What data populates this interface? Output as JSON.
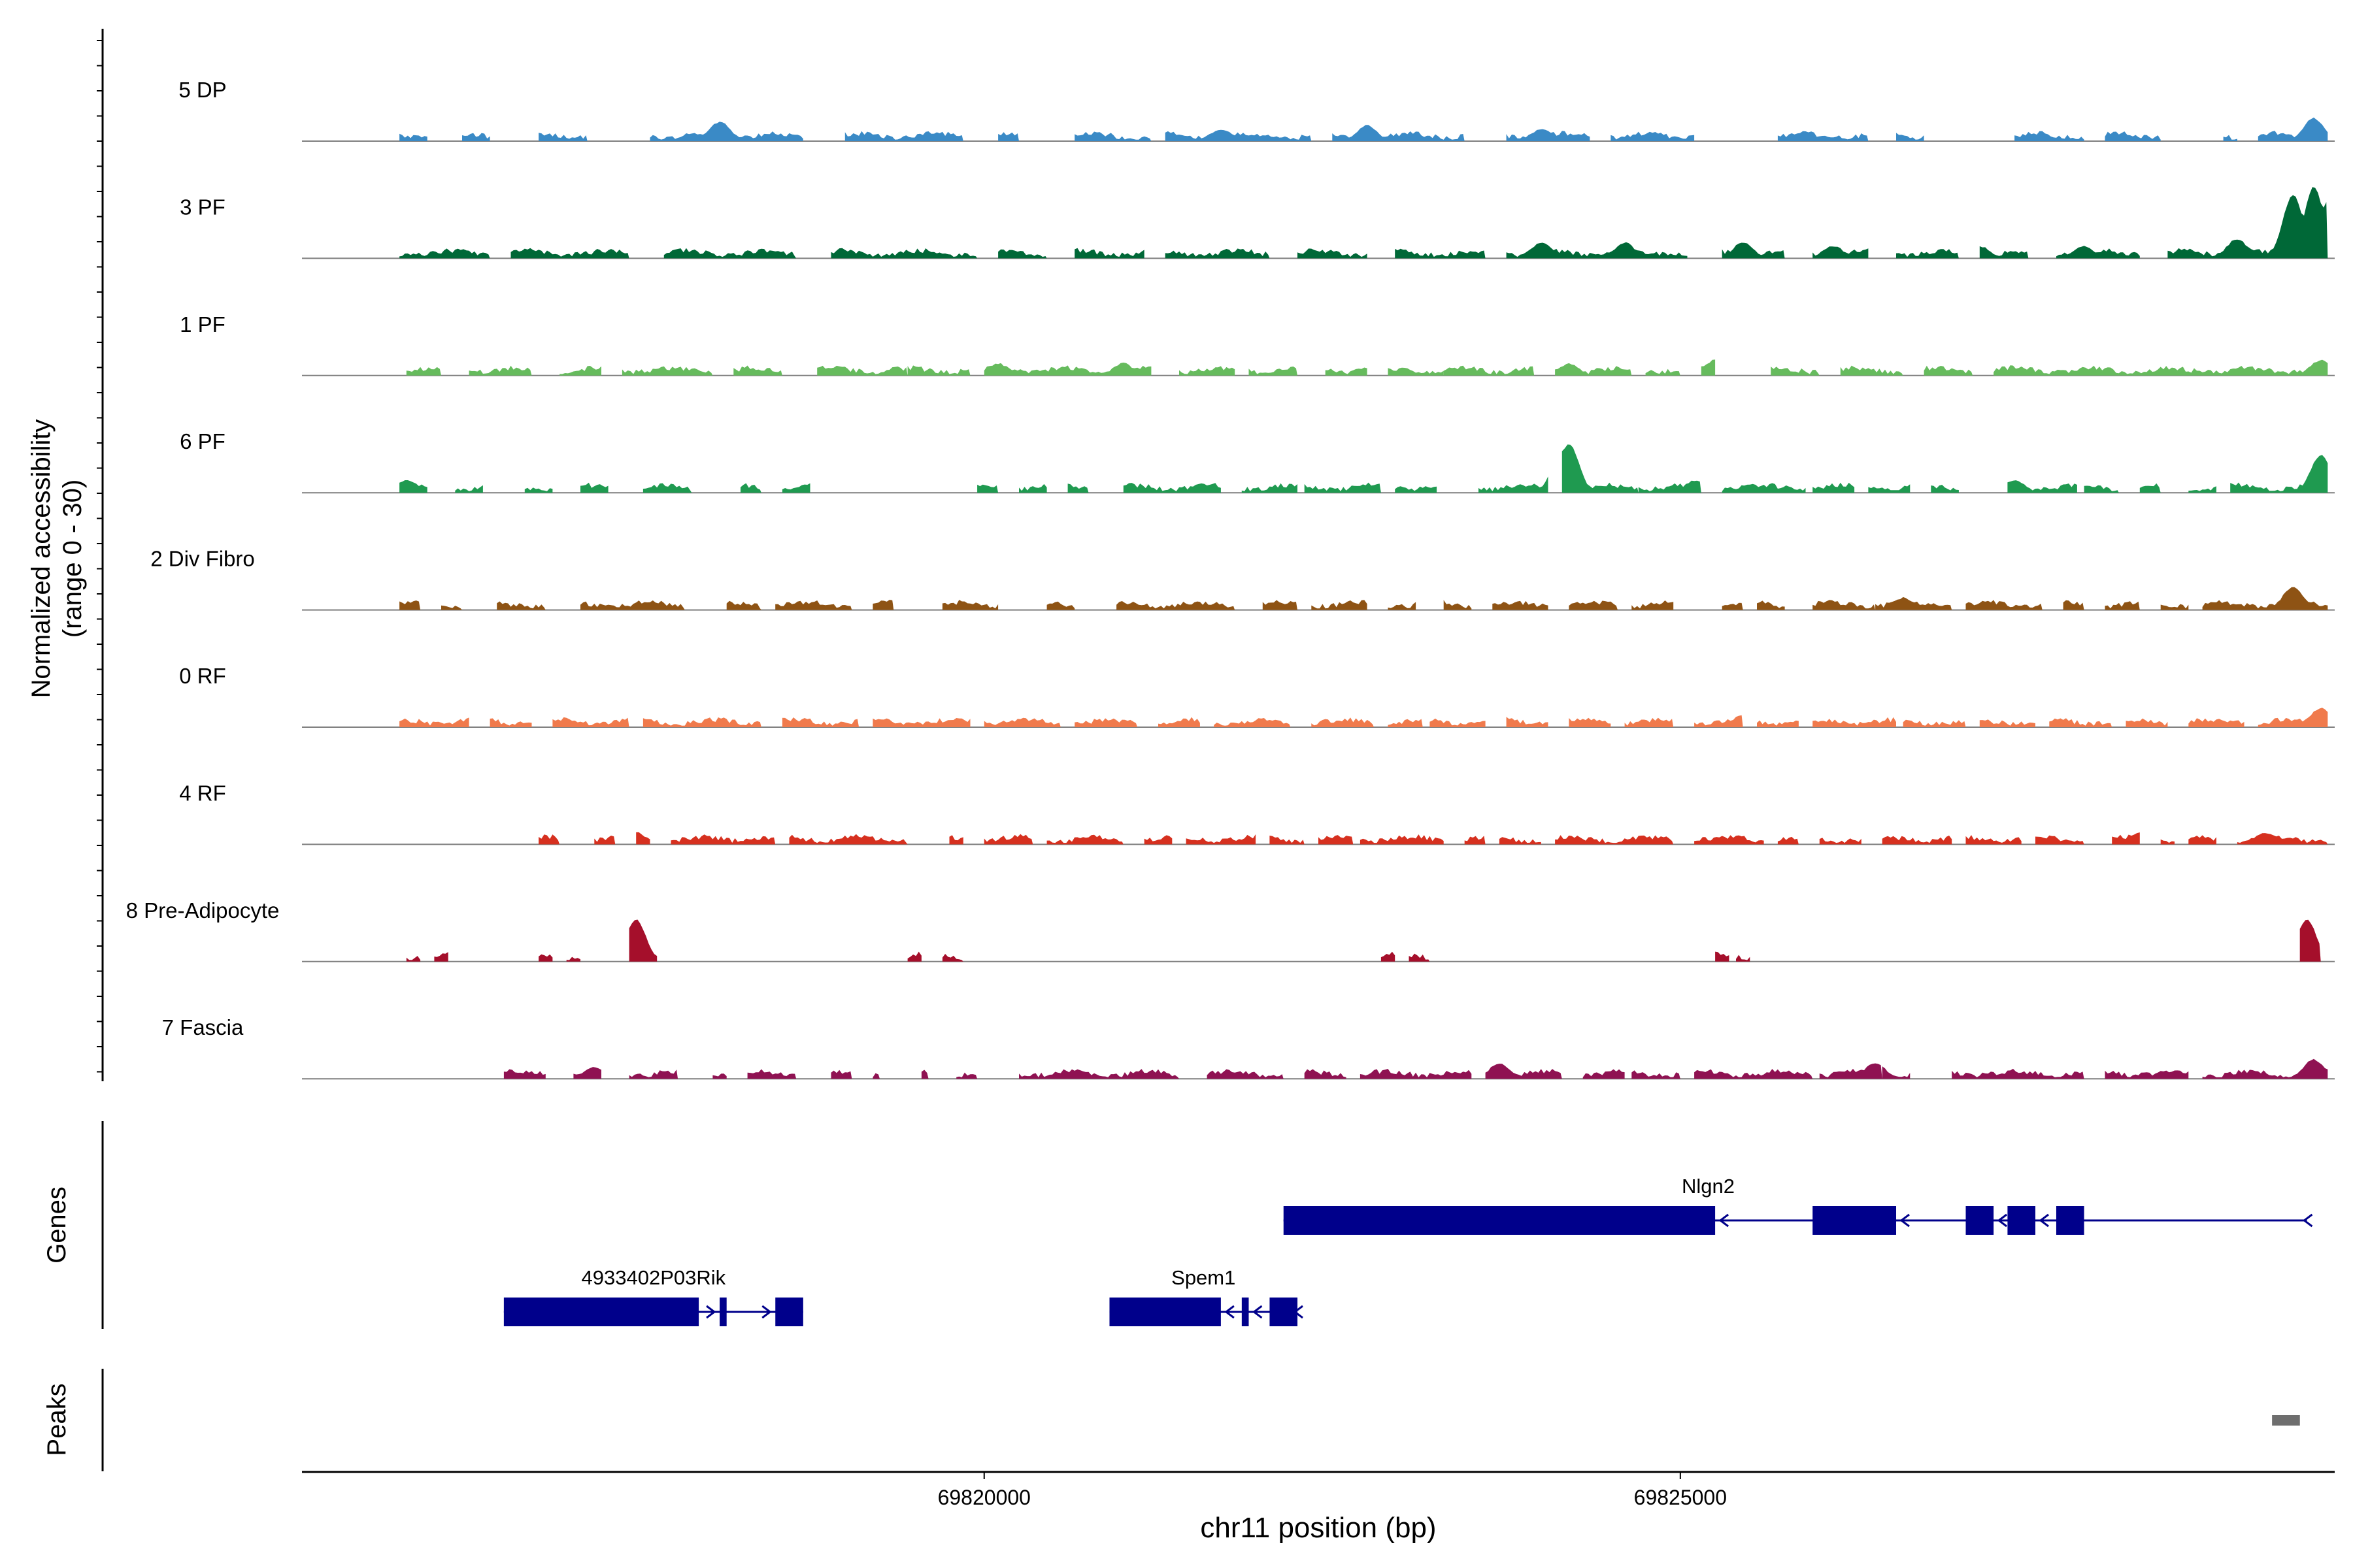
{
  "chart_data": {
    "type": "coverage-track",
    "region": {
      "chrom": "chr11",
      "start": 69815100,
      "end": 69829700
    },
    "xlabel": "chr11 position (bp)",
    "ylabel_line1": "Normalized accessibility",
    "ylabel_line2": "(range 0 - 30)",
    "ylim": [
      0,
      30
    ],
    "x_ticks": [
      {
        "value": 69820000,
        "label": "69820000"
      },
      {
        "value": 69825000,
        "label": "69825000"
      }
    ],
    "tracks": [
      {
        "name": "5 DP",
        "color": "#3a8ac6",
        "islands": [
          [
            69815800,
            69816000
          ],
          [
            69816250,
            69816450
          ],
          [
            69816800,
            69817150
          ],
          [
            69817600,
            69818700
          ],
          [
            69819000,
            69819850
          ],
          [
            69820100,
            69820250
          ],
          [
            69820650,
            69821200
          ],
          [
            69821300,
            69822350
          ],
          [
            69822500,
            69823450
          ],
          [
            69823750,
            69824350
          ],
          [
            69824500,
            69825100
          ],
          [
            69825700,
            69826350
          ],
          [
            69826550,
            69826750
          ],
          [
            69827400,
            69827900
          ],
          [
            69828050,
            69828450
          ],
          [
            69828900,
            69829000
          ],
          [
            69829150,
            69829650
          ]
        ],
        "peaks": [
          [
            69818100,
            5
          ],
          [
            69821700,
            3
          ],
          [
            69822750,
            4
          ],
          [
            69824000,
            3
          ],
          [
            69829550,
            6
          ]
        ]
      },
      {
        "name": "3 PF",
        "color": "#006837",
        "islands": [
          [
            69815800,
            69816450
          ],
          [
            69816600,
            69817450
          ],
          [
            69817700,
            69818650
          ],
          [
            69818900,
            69819950
          ],
          [
            69820100,
            69820450
          ],
          [
            69820650,
            69821150
          ],
          [
            69821300,
            69822050
          ],
          [
            69822250,
            69822750
          ],
          [
            69822950,
            69823600
          ],
          [
            69823750,
            69825050
          ],
          [
            69825300,
            69825750
          ],
          [
            69825950,
            69826350
          ],
          [
            69826550,
            69827000
          ],
          [
            69827150,
            69827500
          ],
          [
            69827700,
            69828300
          ],
          [
            69828500,
            69829650
          ]
        ],
        "peaks": [
          [
            69824000,
            4
          ],
          [
            69824600,
            4
          ],
          [
            69825450,
            4
          ],
          [
            69826100,
            3
          ],
          [
            69827150,
            3
          ],
          [
            69827900,
            3
          ],
          [
            69829000,
            5
          ],
          [
            69829400,
            17
          ],
          [
            69829550,
            19
          ],
          [
            69829650,
            15
          ]
        ]
      },
      {
        "name": "1 PF",
        "color": "#66bb5d",
        "islands": [
          [
            69815850,
            69816100
          ],
          [
            69816300,
            69816750
          ],
          [
            69816950,
            69817250
          ],
          [
            69817400,
            69818050
          ],
          [
            69818200,
            69818550
          ],
          [
            69818800,
            69819450
          ],
          [
            69819450,
            69819900
          ],
          [
            69820000,
            69821200
          ],
          [
            69821400,
            69821800
          ],
          [
            69821900,
            69822250
          ],
          [
            69822450,
            69822750
          ],
          [
            69822900,
            69823300
          ],
          [
            69823300,
            69823950
          ],
          [
            69824100,
            69824650
          ],
          [
            69824750,
            69825000
          ],
          [
            69825150,
            69825250
          ],
          [
            69825650,
            69826000
          ],
          [
            69826150,
            69826600
          ],
          [
            69826750,
            69827100
          ],
          [
            69827250,
            69829650
          ]
        ],
        "peaks": [
          [
            69820100,
            3
          ],
          [
            69821000,
            3
          ],
          [
            69824200,
            3
          ],
          [
            69825250,
            4
          ],
          [
            69829600,
            4
          ]
        ]
      },
      {
        "name": "6 PF",
        "color": "#1f9a50",
        "islands": [
          [
            69815800,
            69816000
          ],
          [
            69816200,
            69816400
          ],
          [
            69816700,
            69816900
          ],
          [
            69817100,
            69817300
          ],
          [
            69817550,
            69817900
          ],
          [
            69818250,
            69818400
          ],
          [
            69818550,
            69818750
          ],
          [
            69819950,
            69820100
          ],
          [
            69820250,
            69820450
          ],
          [
            69820600,
            69820750
          ],
          [
            69821000,
            69821700
          ],
          [
            69821850,
            69822250
          ],
          [
            69822300,
            69822850
          ],
          [
            69822950,
            69823250
          ],
          [
            69823550,
            69824050
          ],
          [
            69824150,
            69824700
          ],
          [
            69824700,
            69825150
          ],
          [
            69825300,
            69825900
          ],
          [
            69825950,
            69826250
          ],
          [
            69826350,
            69826650
          ],
          [
            69826800,
            69827000
          ],
          [
            69827350,
            69827850
          ],
          [
            69827900,
            69828150
          ],
          [
            69828300,
            69828450
          ],
          [
            69828650,
            69828850
          ],
          [
            69828950,
            69829650
          ]
        ],
        "peaks": [
          [
            69815850,
            3
          ],
          [
            69824150,
            11
          ],
          [
            69824200,
            13
          ],
          [
            69825100,
            3
          ],
          [
            69827400,
            3
          ],
          [
            69829600,
            10
          ]
        ]
      },
      {
        "name": "2 Div Fibro",
        "color": "#8e5314",
        "islands": [
          [
            69815800,
            69815950
          ],
          [
            69816100,
            69816250
          ],
          [
            69816500,
            69816850
          ],
          [
            69817100,
            69817850
          ],
          [
            69818150,
            69818400
          ],
          [
            69818500,
            69819050
          ],
          [
            69819200,
            69819350
          ],
          [
            69819700,
            69820100
          ],
          [
            69820450,
            69820650
          ],
          [
            69820950,
            69821800
          ],
          [
            69822000,
            69822250
          ],
          [
            69822350,
            69822750
          ],
          [
            69822900,
            69823100
          ],
          [
            69823300,
            69823500
          ],
          [
            69823650,
            69824050
          ],
          [
            69824200,
            69824550
          ],
          [
            69824650,
            69824950
          ],
          [
            69825300,
            69825450
          ],
          [
            69825550,
            69825750
          ],
          [
            69825950,
            69826400
          ],
          [
            69826400,
            69826950
          ],
          [
            69827050,
            69827600
          ],
          [
            69827750,
            69827900
          ],
          [
            69828050,
            69828300
          ],
          [
            69828450,
            69828650
          ],
          [
            69828750,
            69829050
          ],
          [
            69829050,
            69829650
          ]
        ],
        "peaks": [
          [
            69826600,
            3
          ],
          [
            69829400,
            6
          ]
        ]
      },
      {
        "name": "0 RF",
        "color": "#f07a4c",
        "islands": [
          [
            69815800,
            69816300
          ],
          [
            69816450,
            69816750
          ],
          [
            69816900,
            69817450
          ],
          [
            69817550,
            69818400
          ],
          [
            69818550,
            69819100
          ],
          [
            69819200,
            69819900
          ],
          [
            69820000,
            69820550
          ],
          [
            69820650,
            69821100
          ],
          [
            69821250,
            69821550
          ],
          [
            69821650,
            69822200
          ],
          [
            69822350,
            69822800
          ],
          [
            69822900,
            69823150
          ],
          [
            69823200,
            69823600
          ],
          [
            69823750,
            69824050
          ],
          [
            69824200,
            69824500
          ],
          [
            69824600,
            69824950
          ],
          [
            69825100,
            69825450
          ],
          [
            69825550,
            69825850
          ],
          [
            69825950,
            69826550
          ],
          [
            69826600,
            69827050
          ],
          [
            69827150,
            69827550
          ],
          [
            69827650,
            69828100
          ],
          [
            69828200,
            69828500
          ],
          [
            69828650,
            69829050
          ],
          [
            69829150,
            69829650
          ]
        ],
        "peaks": [
          [
            69817500,
            3
          ],
          [
            69825450,
            3
          ],
          [
            69829600,
            5
          ]
        ]
      },
      {
        "name": "4 RF",
        "color": "#d6301f",
        "islands": [
          [
            69816800,
            69816950
          ],
          [
            69817200,
            69817350
          ],
          [
            69817500,
            69817600
          ],
          [
            69817750,
            69818500
          ],
          [
            69818600,
            69819450
          ],
          [
            69819750,
            69819850
          ],
          [
            69820000,
            69820350
          ],
          [
            69820450,
            69821000
          ],
          [
            69821150,
            69821350
          ],
          [
            69821450,
            69821950
          ],
          [
            69822050,
            69822300
          ],
          [
            69822400,
            69822650
          ],
          [
            69822700,
            69823300
          ],
          [
            69823450,
            69823600
          ],
          [
            69823700,
            69824000
          ],
          [
            69824100,
            69824950
          ],
          [
            69825100,
            69825600
          ],
          [
            69825700,
            69825850
          ],
          [
            69826000,
            69826300
          ],
          [
            69826450,
            69826950
          ],
          [
            69827050,
            69827450
          ],
          [
            69827550,
            69827900
          ],
          [
            69828100,
            69828300
          ],
          [
            69828450,
            69828550
          ],
          [
            69828650,
            69828850
          ],
          [
            69829000,
            69829650
          ]
        ],
        "peaks": [
          [
            69817500,
            3
          ],
          [
            69828300,
            3
          ],
          [
            69829200,
            3
          ]
        ]
      },
      {
        "name": "8 Pre-Adipocyte",
        "color": "#a50f2b",
        "islands": [
          [
            69815850,
            69815950
          ],
          [
            69816050,
            69816150
          ],
          [
            69816800,
            69816900
          ],
          [
            69817000,
            69817100
          ],
          [
            69817450,
            69817650
          ],
          [
            69819450,
            69819550
          ],
          [
            69819700,
            69819850
          ],
          [
            69822850,
            69822950
          ],
          [
            69823050,
            69823200
          ],
          [
            69825250,
            69825350
          ],
          [
            69825400,
            69825500
          ],
          [
            69829450,
            69829600
          ]
        ],
        "peaks": [
          [
            69817500,
            11
          ],
          [
            69829500,
            11
          ]
        ]
      },
      {
        "name": "7 Fascia",
        "color": "#8f1252",
        "islands": [
          [
            69816550,
            69816850
          ],
          [
            69817050,
            69817250
          ],
          [
            69817450,
            69817800
          ],
          [
            69818050,
            69818150
          ],
          [
            69818300,
            69818650
          ],
          [
            69818900,
            69819050
          ],
          [
            69819200,
            69819250
          ],
          [
            69819550,
            69819600
          ],
          [
            69819800,
            69819950
          ],
          [
            69820250,
            69821400
          ],
          [
            69821600,
            69822150
          ],
          [
            69822300,
            69822600
          ],
          [
            69822700,
            69823500
          ],
          [
            69823600,
            69824150
          ],
          [
            69824300,
            69824600
          ],
          [
            69824650,
            69825000
          ],
          [
            69825100,
            69825950
          ],
          [
            69826000,
            69826450
          ],
          [
            69826450,
            69826650
          ],
          [
            69826950,
            69827900
          ],
          [
            69828050,
            69828650
          ],
          [
            69828750,
            69829650
          ]
        ],
        "peaks": [
          [
            69817200,
            3
          ],
          [
            69823700,
            4
          ],
          [
            69826400,
            4
          ],
          [
            69829550,
            5
          ]
        ]
      }
    ],
    "genes_panel_label": "Genes",
    "genes": [
      {
        "name": "Nlgn2",
        "strand": "-",
        "start": 69822150,
        "end": 69829500,
        "exons": [
          [
            69822150,
            69825250
          ],
          [
            69825950,
            69826550
          ],
          [
            69827050,
            69827250
          ],
          [
            69827350,
            69827550
          ],
          [
            69827700,
            69827900
          ]
        ]
      },
      {
        "name": "4933402P03Rik",
        "strand": "+",
        "start": 69816550,
        "end": 69818700,
        "exons": [
          [
            69816550,
            69817950
          ],
          [
            69818100,
            69818150
          ],
          [
            69818500,
            69818700
          ]
        ]
      },
      {
        "name": "Spem1",
        "strand": "-",
        "start": 69820900,
        "end": 69822250,
        "exons": [
          [
            69820900,
            69821700
          ],
          [
            69821850,
            69821900
          ],
          [
            69822050,
            69822250
          ]
        ]
      }
    ],
    "peaks_panel_label": "Peaks",
    "peak_regions": [
      [
        69829250,
        69829450
      ]
    ],
    "peak_color": "#6e6e6e",
    "gene_color": "#00008b"
  }
}
